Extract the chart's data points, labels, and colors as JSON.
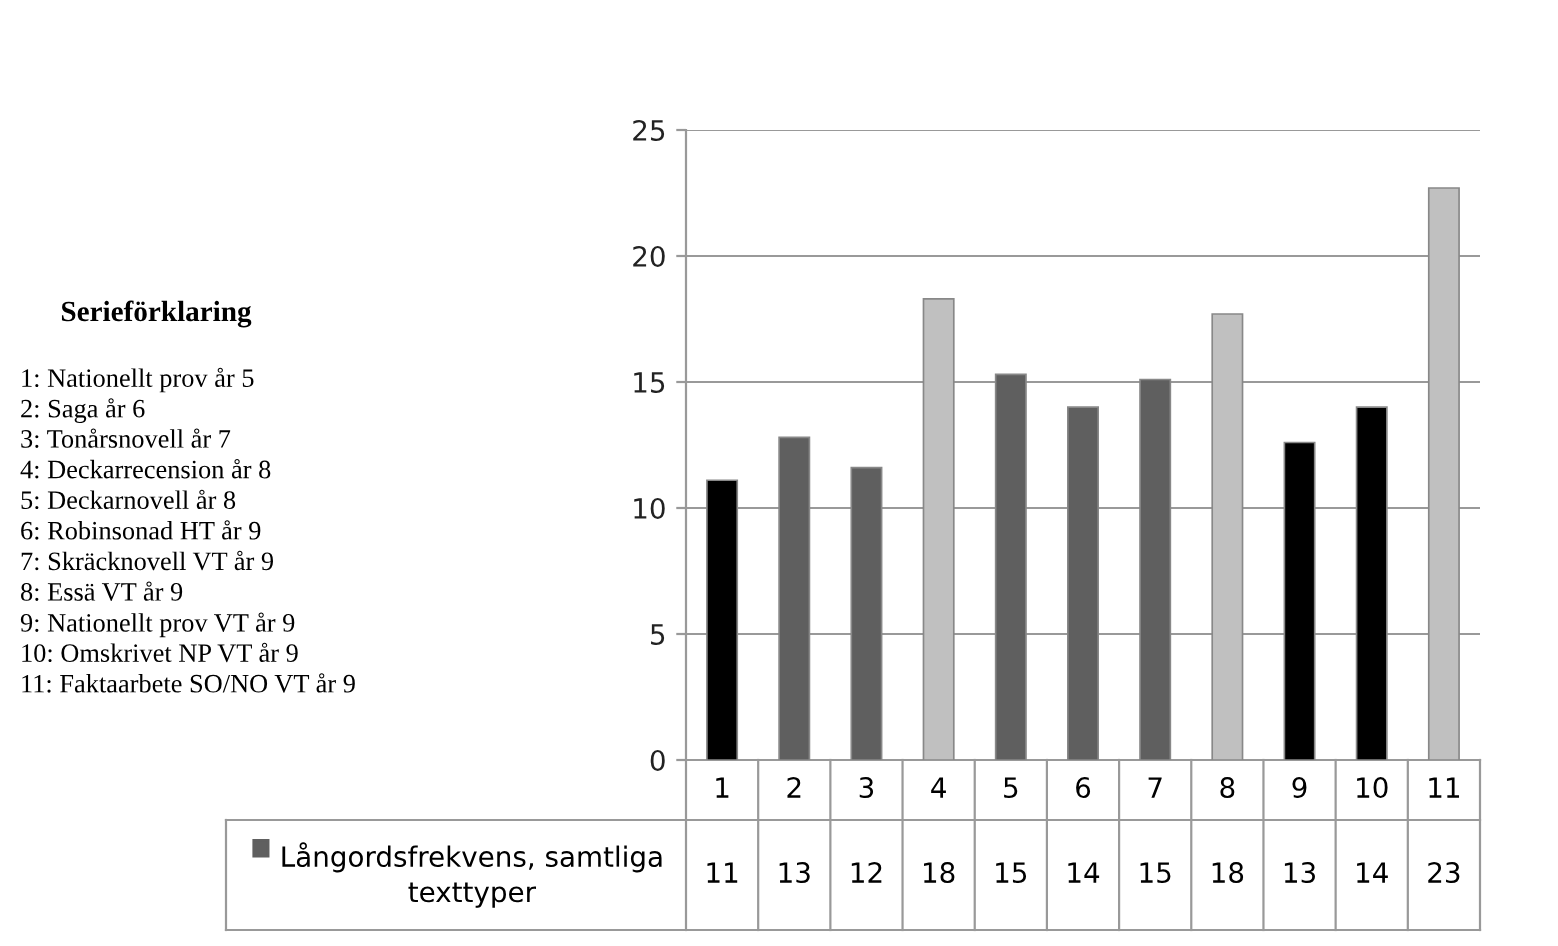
{
  "chart_data": {
    "type": "bar",
    "categories": [
      "1",
      "2",
      "3",
      "4",
      "5",
      "6",
      "7",
      "8",
      "9",
      "10",
      "11"
    ],
    "series": [
      {
        "name": "Långordsfrekvens, samtliga texttyper",
        "color": "#5f5f5f",
        "colors": [
          "#000000",
          "#5f5f5f",
          "#5f5f5f",
          "#c0c0c0",
          "#5f5f5f",
          "#5f5f5f",
          "#5f5f5f",
          "#c0c0c0",
          "#000000",
          "#000000",
          "#c0c0c0"
        ],
        "values": [
          11.1,
          12.8,
          11.6,
          18.3,
          15.3,
          14.0,
          15.1,
          17.7,
          12.6,
          14.0,
          22.7
        ],
        "value_labels": [
          "11",
          "13",
          "12",
          "18",
          "15",
          "14",
          "15",
          "18",
          "13",
          "14",
          "23"
        ]
      }
    ],
    "ylim": [
      0,
      25
    ],
    "yticks": [
      0,
      5,
      10,
      15,
      20,
      25
    ],
    "grid": "y",
    "annotations": [
      "Serieförklaring",
      "1: Nationellt prov år 5",
      "2: Saga år 6",
      "3: Tonårsnovell år 7",
      "4: Deckarrecension år 8",
      "5: Deckarnovell år 8",
      "6: Robinsonad HT år 9",
      "7: Skräcknovell VT år 9",
      "8: Essä VT år 9",
      "9: Nationellt prov VT år 9",
      "10: Omskrivet NP VT år 9",
      "11: Faktaarbete SO/NO VT år 9"
    ]
  }
}
